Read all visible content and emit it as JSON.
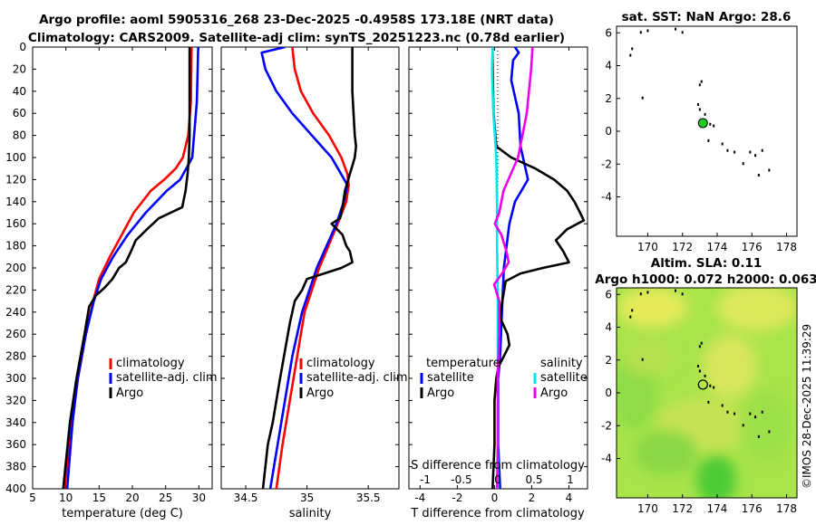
{
  "titles": {
    "line1": "Argo profile: aoml 5905316_268 23-Dec-2025 -0.4958S 173.18E (NRT data)",
    "line2": "Climatology: CARS2009. Satellite-adj clim: synTS_20251223.nc (0.78d earlier)"
  },
  "colors": {
    "climatology": "#ff0000",
    "satellite": "#0000ff",
    "argo": "#000000",
    "cyan": "#00e5ee",
    "magenta": "#ee00ee",
    "float": "#22cc22"
  },
  "chart_data": [
    {
      "name": "temperature_profile",
      "type": "line",
      "xlabel": "temperature (deg C)",
      "ylabel": "depth",
      "xlim": [
        5,
        32
      ],
      "ylim": [
        0,
        400
      ],
      "y_inverted": true,
      "xticks": [
        "5",
        "10",
        "15",
        "20",
        "25",
        "30"
      ],
      "yticks": [
        "0",
        "20",
        "40",
        "60",
        "80",
        "100",
        "120",
        "140",
        "160",
        "180",
        "200",
        "220",
        "240",
        "260",
        "280",
        "300",
        "320",
        "340",
        "360",
        "380",
        "400"
      ],
      "legend": [
        "climatology",
        "satellite-adj. clim",
        "Argo"
      ],
      "series": [
        {
          "name": "climatology",
          "depth": [
            0,
            50,
            80,
            100,
            110,
            120,
            130,
            150,
            170,
            190,
            210,
            230,
            260,
            300,
            340,
            400
          ],
          "values": [
            28.9,
            28.8,
            28.4,
            27.6,
            26.5,
            24.8,
            22.8,
            20.2,
            18.4,
            16.6,
            15.0,
            14.1,
            13.0,
            11.8,
            10.8,
            9.8
          ]
        },
        {
          "name": "satellite-adj. clim",
          "depth": [
            0,
            50,
            100,
            120,
            130,
            140,
            150,
            170,
            190,
            210,
            230,
            260,
            300,
            340,
            400
          ],
          "values": [
            29.9,
            29.7,
            29.0,
            27.2,
            25.2,
            23.6,
            22.0,
            19.3,
            17.1,
            15.3,
            14.2,
            13.0,
            11.8,
            11.0,
            10.2
          ]
        },
        {
          "name": "Argo",
          "depth": [
            0,
            50,
            80,
            100,
            115,
            130,
            145,
            155,
            165,
            175,
            185,
            195,
            200,
            210,
            218,
            225,
            235,
            260,
            300,
            340,
            400
          ],
          "values": [
            28.6,
            28.6,
            28.6,
            28.5,
            28.3,
            28.0,
            27.5,
            24.0,
            22.2,
            20.5,
            19.8,
            19.0,
            18.0,
            17.0,
            15.8,
            14.5,
            13.5,
            12.8,
            11.6,
            10.6,
            9.6
          ]
        }
      ]
    },
    {
      "name": "salinity_profile",
      "type": "line",
      "xlabel": "salinity",
      "xlim": [
        34.3,
        35.75
      ],
      "ylim": [
        0,
        400
      ],
      "y_inverted": true,
      "xticks": [
        "34.5",
        "35",
        "35.5"
      ],
      "legend": [
        "climatology",
        "satellite-adj. clim",
        "Argo"
      ],
      "series": [
        {
          "name": "climatology",
          "depth": [
            0,
            20,
            40,
            60,
            80,
            100,
            115,
            125,
            140,
            160,
            200,
            240,
            280,
            320,
            360,
            400
          ],
          "values": [
            34.88,
            34.9,
            34.95,
            35.05,
            35.18,
            35.28,
            35.33,
            35.34,
            35.32,
            35.25,
            35.1,
            34.98,
            34.92,
            34.86,
            34.8,
            34.75
          ]
        },
        {
          "name": "satellite-adj. clim",
          "depth": [
            0,
            5,
            20,
            40,
            60,
            80,
            100,
            125,
            140,
            160,
            200,
            240,
            280,
            320,
            360,
            400
          ],
          "values": [
            34.82,
            34.63,
            34.66,
            34.75,
            34.88,
            35.04,
            35.2,
            35.33,
            35.3,
            35.24,
            35.08,
            34.96,
            34.88,
            34.82,
            34.76,
            34.7
          ]
        },
        {
          "name": "Argo",
          "depth": [
            0,
            40,
            80,
            90,
            100,
            115,
            130,
            145,
            155,
            160,
            170,
            180,
            185,
            195,
            200,
            205,
            210,
            220,
            230,
            250,
            300,
            340,
            360,
            400
          ],
          "values": [
            35.37,
            35.37,
            35.39,
            35.4,
            35.39,
            35.35,
            35.31,
            35.29,
            35.27,
            35.2,
            35.29,
            35.32,
            35.35,
            35.37,
            35.28,
            35.14,
            35.0,
            34.96,
            34.9,
            34.86,
            34.78,
            34.72,
            34.68,
            34.64
          ]
        }
      ]
    },
    {
      "name": "difference_profile",
      "type": "line",
      "xlabel": "T difference from climatology",
      "x2label": "S difference from climatology",
      "xlim": [
        -4.6,
        5.0
      ],
      "ylim": [
        0,
        400
      ],
      "y_inverted": true,
      "xticks": [
        "-4",
        "-2",
        "0",
        "2",
        "4"
      ],
      "x2ticks": [
        "-1",
        "-0.5",
        "0",
        "0.5",
        "1"
      ],
      "legend": {
        "temperature_title": "temperature",
        "salinity_title": "salinity",
        "satellite": "satellite",
        "argo": "Argo"
      },
      "series": [
        {
          "name": "T satellite",
          "depth": [
            0,
            5,
            12,
            30,
            60,
            90,
            120,
            140,
            160,
            200,
            240,
            280,
            300,
            330,
            360,
            400
          ],
          "values": [
            1.1,
            1.3,
            1.0,
            0.9,
            1.3,
            1.4,
            1.8,
            1.1,
            0.8,
            0.5,
            0.4,
            0.3,
            0.2,
            0.2,
            0.2,
            0.3
          ]
        },
        {
          "name": "T Argo",
          "depth": [
            0,
            20,
            60,
            90,
            100,
            110,
            120,
            130,
            140,
            150,
            157,
            165,
            175,
            185,
            195,
            200,
            205,
            212,
            222,
            232,
            245,
            260,
            270,
            280,
            290,
            300,
            320,
            360,
            400
          ],
          "values": [
            -0.1,
            -0.1,
            -0.05,
            0.1,
            0.9,
            2.2,
            3.2,
            3.9,
            4.3,
            4.6,
            4.8,
            3.9,
            3.3,
            3.7,
            4.0,
            2.6,
            1.4,
            0.6,
            0.5,
            0.4,
            0.3,
            0.7,
            0.8,
            0.5,
            0.2,
            0.1,
            0.0,
            0.0,
            -0.1
          ]
        },
        {
          "name": "S satellite",
          "depth": [
            0,
            20,
            60,
            100,
            140,
            180,
            220,
            260,
            300,
            360,
            400
          ],
          "values": [
            -0.07,
            -0.08,
            -0.06,
            -0.02,
            -0.01,
            -0.01,
            0.0,
            0.0,
            0.0,
            0.0,
            0.0
          ]
        },
        {
          "name": "S Argo",
          "depth": [
            0,
            20,
            60,
            100,
            130,
            150,
            160,
            170,
            185,
            195,
            205,
            215,
            230,
            260,
            300,
            360,
            400
          ],
          "values": [
            0.48,
            0.46,
            0.4,
            0.28,
            0.08,
            0.02,
            -0.04,
            0.05,
            0.12,
            0.15,
            0.06,
            -0.05,
            0.02,
            0.02,
            0.0,
            0.0,
            -0.01
          ]
        }
      ]
    },
    {
      "name": "sst_map",
      "type": "scatter",
      "title": "sat. SST: NaN Argo: 28.6",
      "xlim": [
        168.2,
        178.6
      ],
      "ylim": [
        -6.4,
        6.4
      ],
      "xticks": [
        "170",
        "172",
        "174",
        "176",
        "178"
      ],
      "yticks": [
        "6",
        "4",
        "2",
        "0",
        "-2",
        "-4"
      ],
      "float_position": {
        "lon": 173.18,
        "lat": 0.5
      }
    },
    {
      "name": "sla_map",
      "type": "heatmap",
      "title1": "Altim. SLA: 0.11",
      "title2": "Argo h1000: 0.072 h2000: 0.063",
      "xlim": [
        168.2,
        178.6
      ],
      "ylim": [
        -6.4,
        6.4
      ],
      "xticks": [
        "170",
        "172",
        "174",
        "176",
        "178"
      ],
      "yticks": [
        "6",
        "4",
        "2",
        "0",
        "-2",
        "-4"
      ],
      "float_position": {
        "lon": 173.18,
        "lat": 0.5
      }
    }
  ],
  "stamp": "©IMOS 28-Dec-2025 11:39:29"
}
